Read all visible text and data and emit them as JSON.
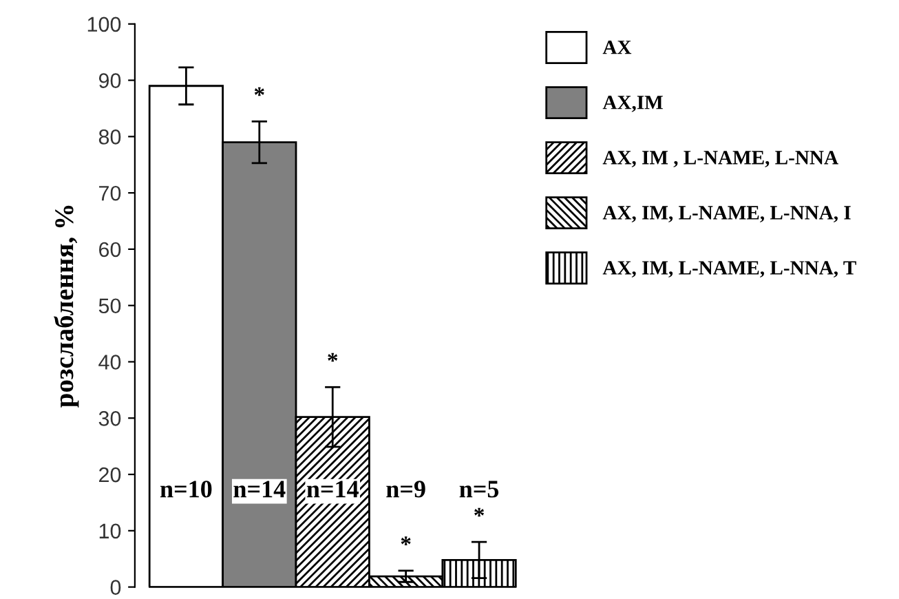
{
  "chart_data": {
    "type": "bar",
    "ylabel": "розслаблення, %",
    "categories": [
      null,
      null,
      null,
      null,
      null
    ],
    "series": [
      {
        "name": "AX",
        "color": "#ffffff",
        "values": [
          89,
          null,
          null,
          null,
          null
        ],
        "errors": [
          3.3,
          null,
          null,
          null,
          null
        ]
      },
      {
        "name": "AX,IM",
        "color": "#808080",
        "values": [
          null,
          79,
          null,
          null,
          null
        ],
        "errors": [
          null,
          3.7,
          null,
          null,
          null
        ]
      },
      {
        "name": "AX, IM , L-NAME, L-NNA",
        "color": "#000000",
        "values": [
          null,
          null,
          30.2,
          null,
          null
        ],
        "errors": [
          null,
          null,
          5.3,
          null,
          null
        ]
      },
      {
        "name": "AX, IM, L-NAME, L-NNA, I",
        "color": "#000000",
        "values": [
          null,
          null,
          null,
          1.9,
          null
        ],
        "errors": [
          null,
          null,
          null,
          1.0,
          null
        ]
      },
      {
        "name": "AX, IM, L-NAME, L-NNA, T",
        "color": "#000000",
        "values": [
          null,
          null,
          null,
          null,
          4.8
        ],
        "errors": [
          null,
          null,
          null,
          null,
          3.2
        ]
      }
    ],
    "ylim": [
      0,
      100
    ],
    "yticks": [
      0,
      10,
      20,
      30,
      40,
      50,
      60,
      70,
      80,
      90,
      100
    ],
    "tick_labels": "y",
    "grid": false,
    "legend": "right",
    "annotations": [
      "*",
      "*",
      "*",
      "*",
      "n=10",
      "n=14",
      "n=14",
      "n=9",
      "n=5"
    ]
  }
}
